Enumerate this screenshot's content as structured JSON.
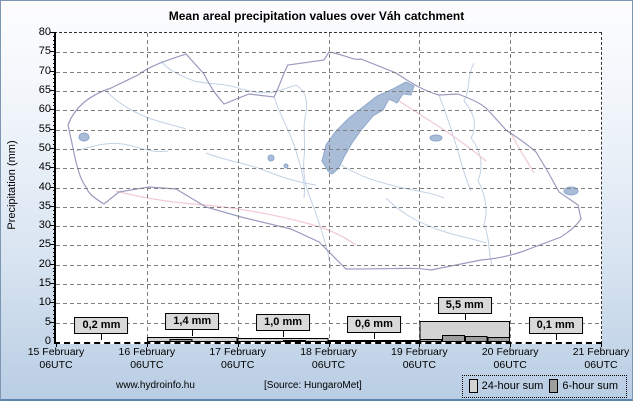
{
  "chart_data": {
    "type": "bar",
    "title": "Mean areal precipitation values over Váh catchment",
    "ylabel": "Precipitation (mm)",
    "ylim": [
      0,
      80
    ],
    "y_tick_step": 5,
    "x_tick_labels": [
      "15 February",
      "16 February",
      "17 February",
      "18 February",
      "19 February",
      "20 February",
      "21 February"
    ],
    "x_tick_sublabel": "06UTC",
    "grid": true,
    "legend_position": "bottom-right",
    "series": [
      {
        "name": "24-hour sum",
        "color": "#d3d3d3",
        "values_mm": [
          0.2,
          1.4,
          1.0,
          0.6,
          5.5,
          0.1
        ],
        "value_labels": [
          "0,2 mm",
          "1,4 mm",
          "1,0 mm",
          "0,6 mm",
          "5,5 mm",
          "0,1 mm"
        ]
      },
      {
        "name": "6-hour sum",
        "color": "#9e9e9e",
        "values_mm_per_6h": [
          [
            0,
            0.1,
            0.1,
            0
          ],
          [
            0.1,
            0.8,
            0.3,
            0.2
          ],
          [
            0.2,
            0.3,
            0.4,
            0.1
          ],
          [
            0.1,
            0.3,
            0.2,
            0
          ],
          [
            0.8,
            1.9,
            1.5,
            1.3
          ],
          [
            0.1,
            0,
            0,
            0
          ]
        ]
      }
    ]
  },
  "footer": {
    "website": "www.hydroinfo.hu",
    "source": "[Source: HungaroMet]"
  },
  "colors": {
    "grid": "#808080",
    "bar_border": "#000000",
    "map_outline": "#9b9bc0",
    "map_river": "#c3d2e6",
    "map_road": "#f2c9d2",
    "lake_fill": "#a9bdd9"
  }
}
